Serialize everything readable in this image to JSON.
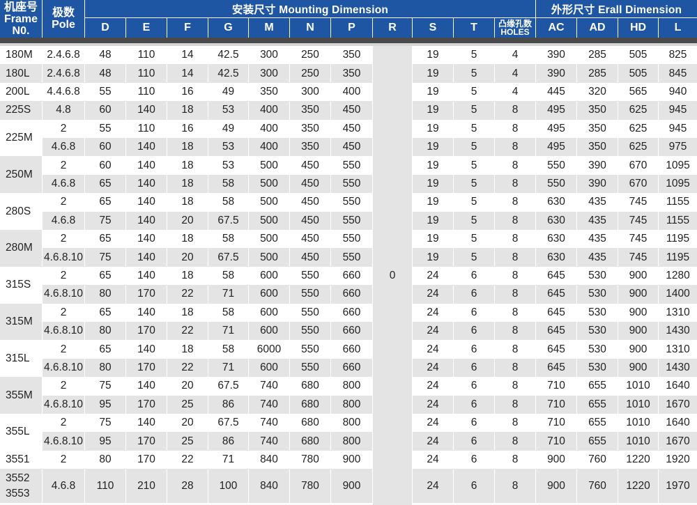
{
  "header": {
    "frame_cn": "机座号",
    "frame_en1": "Frame",
    "frame_en2": "N0.",
    "pole_cn": "极数",
    "pole_en": "Pole",
    "mounting_title": "安装尺寸 Mounting Dimension",
    "overall_title": "外形尺寸 Erall Dimension",
    "holes_cn": "凸缘孔数",
    "holes_en": "HOLES",
    "cols": [
      "D",
      "E",
      "F",
      "G",
      "M",
      "N",
      "P",
      "R",
      "S",
      "T"
    ],
    "overall_cols": [
      "AC",
      "AD",
      "HD",
      "L"
    ]
  },
  "r_value": "0",
  "groups": [
    {
      "frame": [
        "180M"
      ],
      "rows": [
        [
          "2.4.6.8",
          "48",
          "110",
          "14",
          "42.5",
          "300",
          "250",
          "350",
          "19",
          "5",
          "4",
          "390",
          "285",
          "505",
          "825"
        ]
      ]
    },
    {
      "frame": [
        "180L"
      ],
      "rows": [
        [
          "2.4.6.8",
          "48",
          "110",
          "14",
          "42.5",
          "300",
          "250",
          "350",
          "19",
          "5",
          "4",
          "390",
          "285",
          "505",
          "845"
        ]
      ]
    },
    {
      "frame": [
        "200L"
      ],
      "rows": [
        [
          "4.4.6.8",
          "55",
          "110",
          "16",
          "49",
          "350",
          "300",
          "400",
          "19",
          "5",
          "4",
          "445",
          "320",
          "565",
          "940"
        ]
      ]
    },
    {
      "frame": [
        "225S"
      ],
      "rows": [
        [
          "4.8",
          "60",
          "140",
          "18",
          "53",
          "400",
          "350",
          "450",
          "19",
          "5",
          "8",
          "495",
          "350",
          "625",
          "945"
        ]
      ]
    },
    {
      "frame": [
        "225M"
      ],
      "rows": [
        [
          "2",
          "55",
          "110",
          "16",
          "49",
          "400",
          "350",
          "450",
          "19",
          "5",
          "8",
          "495",
          "350",
          "625",
          "945"
        ],
        [
          "4.6.8",
          "60",
          "140",
          "18",
          "53",
          "400",
          "350",
          "450",
          "19",
          "5",
          "8",
          "495",
          "350",
          "625",
          "975"
        ]
      ]
    },
    {
      "frame": [
        "250M"
      ],
      "rows": [
        [
          "2",
          "60",
          "140",
          "18",
          "53",
          "500",
          "450",
          "550",
          "19",
          "5",
          "8",
          "550",
          "390",
          "670",
          "1095"
        ],
        [
          "4.6.8",
          "65",
          "140",
          "18",
          "58",
          "500",
          "450",
          "550",
          "19",
          "5",
          "8",
          "550",
          "390",
          "670",
          "1095"
        ]
      ]
    },
    {
      "frame": [
        "280S"
      ],
      "rows": [
        [
          "2",
          "65",
          "140",
          "18",
          "58",
          "500",
          "450",
          "550",
          "19",
          "5",
          "8",
          "630",
          "435",
          "745",
          "1155"
        ],
        [
          "4.6.8",
          "75",
          "140",
          "20",
          "67.5",
          "500",
          "450",
          "550",
          "19",
          "5",
          "8",
          "630",
          "435",
          "745",
          "1155"
        ]
      ]
    },
    {
      "frame": [
        "280M"
      ],
      "rows": [
        [
          "2",
          "65",
          "140",
          "18",
          "58",
          "500",
          "450",
          "550",
          "19",
          "5",
          "8",
          "630",
          "435",
          "745",
          "1195"
        ],
        [
          "4.6.8.10",
          "75",
          "140",
          "20",
          "67.5",
          "500",
          "450",
          "550",
          "19",
          "5",
          "8",
          "630",
          "435",
          "745",
          "1195"
        ]
      ]
    },
    {
      "frame": [
        "315S"
      ],
      "rows": [
        [
          "2",
          "65",
          "140",
          "18",
          "58",
          "600",
          "550",
          "660",
          "24",
          "6",
          "8",
          "645",
          "530",
          "900",
          "1280"
        ],
        [
          "4.6.8.10",
          "80",
          "170",
          "22",
          "71",
          "600",
          "550",
          "660",
          "24",
          "6",
          "8",
          "645",
          "530",
          "900",
          "1400"
        ]
      ]
    },
    {
      "frame": [
        "315M"
      ],
      "rows": [
        [
          "2",
          "65",
          "140",
          "18",
          "58",
          "600",
          "550",
          "660",
          "24",
          "6",
          "8",
          "645",
          "530",
          "900",
          "1310"
        ],
        [
          "4.6.8.10",
          "80",
          "170",
          "22",
          "71",
          "600",
          "550",
          "660",
          "24",
          "6",
          "8",
          "645",
          "530",
          "900",
          "1430"
        ]
      ]
    },
    {
      "frame": [
        "315L"
      ],
      "rows": [
        [
          "2",
          "65",
          "140",
          "18",
          "58",
          "6000",
          "550",
          "660",
          "24",
          "6",
          "8",
          "645",
          "530",
          "900",
          "1310"
        ],
        [
          "4.6.8.10",
          "80",
          "170",
          "22",
          "71",
          "600",
          "550",
          "660",
          "24",
          "6",
          "8",
          "645",
          "530",
          "900",
          "1430"
        ]
      ]
    },
    {
      "frame": [
        "355M"
      ],
      "rows": [
        [
          "2",
          "75",
          "140",
          "20",
          "67.5",
          "740",
          "680",
          "800",
          "24",
          "6",
          "8",
          "710",
          "655",
          "1010",
          "1640"
        ],
        [
          "4.6.8.10",
          "95",
          "170",
          "25",
          "86",
          "740",
          "680",
          "800",
          "24",
          "6",
          "8",
          "710",
          "655",
          "1010",
          "1670"
        ]
      ]
    },
    {
      "frame": [
        "355L"
      ],
      "rows": [
        [
          "2",
          "75",
          "140",
          "20",
          "67.5",
          "740",
          "680",
          "800",
          "24",
          "6",
          "8",
          "710",
          "655",
          "1010",
          "1640"
        ],
        [
          "4.6.8.10",
          "95",
          "170",
          "25",
          "86",
          "740",
          "680",
          "800",
          "24",
          "6",
          "8",
          "710",
          "655",
          "1010",
          "1670"
        ]
      ]
    },
    {
      "frame": [
        "3551"
      ],
      "rows": [
        [
          "2",
          "80",
          "170",
          "22",
          "71",
          "840",
          "780",
          "900",
          "24",
          "6",
          "8",
          "900",
          "760",
          "1220",
          "1920"
        ]
      ]
    },
    {
      "frame": [
        "3552",
        "3553"
      ],
      "rows": [
        [
          "4.6.8",
          "110",
          "210",
          "28",
          "100",
          "840",
          "780",
          "900",
          "24",
          "6",
          "8",
          "900",
          "760",
          "1220",
          "1970"
        ]
      ]
    }
  ],
  "colors": {
    "header_bg": "#1f56a4",
    "row_alt_bg": "#e4e4e4",
    "row_bg": "#ffffff",
    "bar_dark": "#4a4a4a"
  }
}
